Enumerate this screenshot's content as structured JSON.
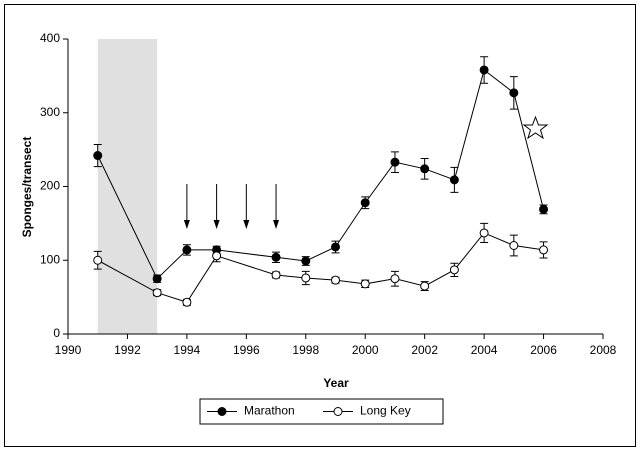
{
  "chart_data": {
    "type": "line",
    "x_label": "Year",
    "y_label": "Sponges/transect",
    "x": [
      1991,
      1993,
      1994,
      1995,
      1997,
      1998,
      1999,
      2000,
      2001,
      2002,
      2003,
      2004,
      2005,
      2006
    ],
    "series": [
      {
        "name": "Marathon",
        "color": "#000000",
        "marker": "filled",
        "values": [
          242,
          75,
          114,
          114,
          104,
          99,
          118,
          178,
          233,
          224,
          209,
          358,
          327,
          169
        ],
        "errors": [
          15,
          5,
          7,
          5,
          7,
          6,
          8,
          8,
          14,
          14,
          17,
          18,
          22,
          6
        ]
      },
      {
        "name": "Long Key",
        "color": "#000000",
        "marker": "open",
        "values": [
          100,
          56,
          43,
          106,
          80,
          76,
          73,
          68,
          75,
          65,
          87,
          137,
          120,
          114
        ],
        "errors": [
          12,
          4,
          4,
          8,
          4,
          9,
          4,
          5,
          10,
          6,
          9,
          13,
          14,
          11
        ]
      }
    ],
    "shaded_span": [
      1991,
      1993
    ],
    "arrows_x": [
      1994,
      1995,
      1996,
      1997
    ],
    "xlim": [
      1990,
      2008
    ],
    "xticks": [
      1990,
      1992,
      1994,
      1996,
      1998,
      2000,
      2002,
      2004,
      2006,
      2008
    ],
    "ylim": [
      0,
      400
    ],
    "yticks": [
      0,
      100,
      200,
      300,
      400
    ],
    "legend": "bottom"
  }
}
